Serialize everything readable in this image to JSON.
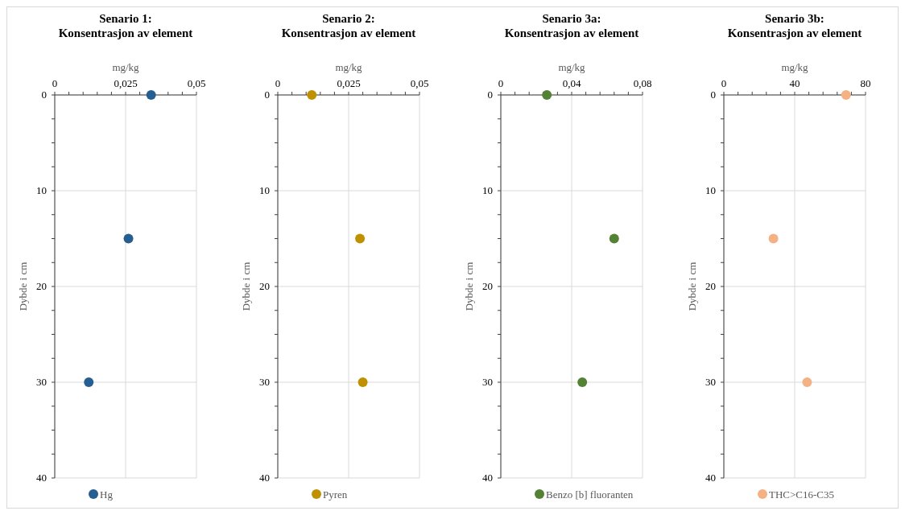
{
  "chart_data": [
    {
      "type": "scatter",
      "title": "Senario 1:\nKonsentrasjon av element",
      "xlabel": "mg/kg",
      "ylabel": "Dybde i cm",
      "x": [
        0.034,
        0.026,
        0.012
      ],
      "series": [
        {
          "name": "Hg",
          "color": "#255e91",
          "values": [
            0,
            15,
            30
          ]
        }
      ],
      "xlim": [
        0,
        0.05
      ],
      "xticks": [
        0,
        {
          "value": 0.005,
          "label": null
        },
        {
          "value": 0.01,
          "label": null
        },
        {
          "value": 0.015,
          "label": null
        },
        {
          "value": 0.02,
          "label": null
        },
        {
          "value": 0.025,
          "label": "0,025"
        },
        {
          "value": 0.03,
          "label": null
        },
        {
          "value": 0.035,
          "label": null
        },
        {
          "value": 0.04,
          "label": null
        },
        {
          "value": 0.045,
          "label": null
        },
        {
          "value": 0.05,
          "label": "0,05"
        }
      ],
      "ylim": [
        40,
        0
      ],
      "yticks": [
        0,
        {
          "value": 2.5,
          "label": null
        },
        {
          "value": 5,
          "label": null
        },
        {
          "value": 7.5,
          "label": null
        },
        10,
        {
          "value": 12.5,
          "label": null
        },
        {
          "value": 15,
          "label": null
        },
        {
          "value": 17.5,
          "label": null
        },
        20,
        {
          "value": 22.5,
          "label": null
        },
        {
          "value": 25,
          "label": null
        },
        {
          "value": 27.5,
          "label": null
        },
        30,
        {
          "value": 32.5,
          "label": null
        },
        {
          "value": 35,
          "label": null
        },
        {
          "value": 37.5,
          "label": null
        },
        40
      ],
      "grid": true,
      "legend": "bottom",
      "marker": "circle"
    },
    {
      "type": "scatter",
      "title": "Senario 2:\nKonsentrasjon av element",
      "xlabel": "mg/kg",
      "ylabel": "Dybde i cm",
      "x": [
        0.012,
        0.029,
        0.03
      ],
      "series": [
        {
          "name": "Pyren",
          "color": "#bf9000",
          "values": [
            0,
            15,
            30
          ]
        }
      ],
      "xlim": [
        0,
        0.05
      ],
      "xticks": [
        0,
        {
          "value": 0.005,
          "label": null
        },
        {
          "value": 0.01,
          "label": null
        },
        {
          "value": 0.015,
          "label": null
        },
        {
          "value": 0.02,
          "label": null
        },
        {
          "value": 0.025,
          "label": "0,025"
        },
        {
          "value": 0.03,
          "label": null
        },
        {
          "value": 0.035,
          "label": null
        },
        {
          "value": 0.04,
          "label": null
        },
        {
          "value": 0.045,
          "label": null
        },
        {
          "value": 0.05,
          "label": "0,05"
        }
      ],
      "ylim": [
        40,
        0
      ],
      "yticks": [
        0,
        {
          "value": 2.5,
          "label": null
        },
        {
          "value": 5,
          "label": null
        },
        {
          "value": 7.5,
          "label": null
        },
        10,
        {
          "value": 12.5,
          "label": null
        },
        {
          "value": 15,
          "label": null
        },
        {
          "value": 17.5,
          "label": null
        },
        20,
        {
          "value": 22.5,
          "label": null
        },
        {
          "value": 25,
          "label": null
        },
        {
          "value": 27.5,
          "label": null
        },
        30,
        {
          "value": 32.5,
          "label": null
        },
        {
          "value": 35,
          "label": null
        },
        {
          "value": 37.5,
          "label": null
        },
        40
      ],
      "grid": true,
      "legend": "bottom",
      "marker": "circle"
    },
    {
      "type": "scatter",
      "title": "Senario 3a:\nKonsentrasjon av element",
      "xlabel": "mg/kg",
      "ylabel": "Dybde i cm",
      "x": [
        0.026,
        0.064,
        0.046
      ],
      "series": [
        {
          "name": "Benzo [b] fluoranten",
          "color": "#548235",
          "values": [
            0,
            15,
            30
          ]
        }
      ],
      "xlim": [
        0,
        0.08
      ],
      "xticks": [
        0,
        {
          "value": 0.008,
          "label": null
        },
        {
          "value": 0.016,
          "label": null
        },
        {
          "value": 0.024,
          "label": null
        },
        {
          "value": 0.032,
          "label": null
        },
        {
          "value": 0.04,
          "label": "0,04"
        },
        {
          "value": 0.048,
          "label": null
        },
        {
          "value": 0.056,
          "label": null
        },
        {
          "value": 0.064,
          "label": null
        },
        {
          "value": 0.072,
          "label": null
        },
        {
          "value": 0.08,
          "label": "0,08"
        }
      ],
      "ylim": [
        40,
        0
      ],
      "yticks": [
        0,
        {
          "value": 2.5,
          "label": null
        },
        {
          "value": 5,
          "label": null
        },
        {
          "value": 7.5,
          "label": null
        },
        10,
        {
          "value": 12.5,
          "label": null
        },
        {
          "value": 15,
          "label": null
        },
        {
          "value": 17.5,
          "label": null
        },
        20,
        {
          "value": 22.5,
          "label": null
        },
        {
          "value": 25,
          "label": null
        },
        {
          "value": 27.5,
          "label": null
        },
        30,
        {
          "value": 32.5,
          "label": null
        },
        {
          "value": 35,
          "label": null
        },
        {
          "value": 37.5,
          "label": null
        },
        40
      ],
      "grid": true,
      "legend": "bottom",
      "marker": "circle"
    },
    {
      "type": "scatter",
      "title": "Senario 3b:\nKonsentrasjon av element",
      "xlabel": "mg/kg",
      "ylabel": "Dybde i cm",
      "x": [
        69,
        28,
        47
      ],
      "series": [
        {
          "name": "THC>C16-C35",
          "color": "#f4b183",
          "values": [
            0,
            15,
            30
          ]
        }
      ],
      "xlim": [
        0,
        80
      ],
      "xticks": [
        0,
        {
          "value": 8,
          "label": null
        },
        {
          "value": 16,
          "label": null
        },
        {
          "value": 24,
          "label": null
        },
        {
          "value": 32,
          "label": null
        },
        40,
        {
          "value": 48,
          "label": null
        },
        {
          "value": 56,
          "label": null
        },
        {
          "value": 64,
          "label": null
        },
        {
          "value": 72,
          "label": null
        },
        80
      ],
      "ylim": [
        40,
        0
      ],
      "yticks": [
        0,
        {
          "value": 2.5,
          "label": null
        },
        {
          "value": 5,
          "label": null
        },
        {
          "value": 7.5,
          "label": null
        },
        10,
        {
          "value": 12.5,
          "label": null
        },
        {
          "value": 15,
          "label": null
        },
        {
          "value": 17.5,
          "label": null
        },
        20,
        {
          "value": 22.5,
          "label": null
        },
        {
          "value": 25,
          "label": null
        },
        {
          "value": 27.5,
          "label": null
        },
        30,
        {
          "value": 32.5,
          "label": null
        },
        {
          "value": 35,
          "label": null
        },
        {
          "value": 37.5,
          "label": null
        },
        40
      ],
      "grid": true,
      "legend": "bottom",
      "marker": "circle"
    }
  ]
}
